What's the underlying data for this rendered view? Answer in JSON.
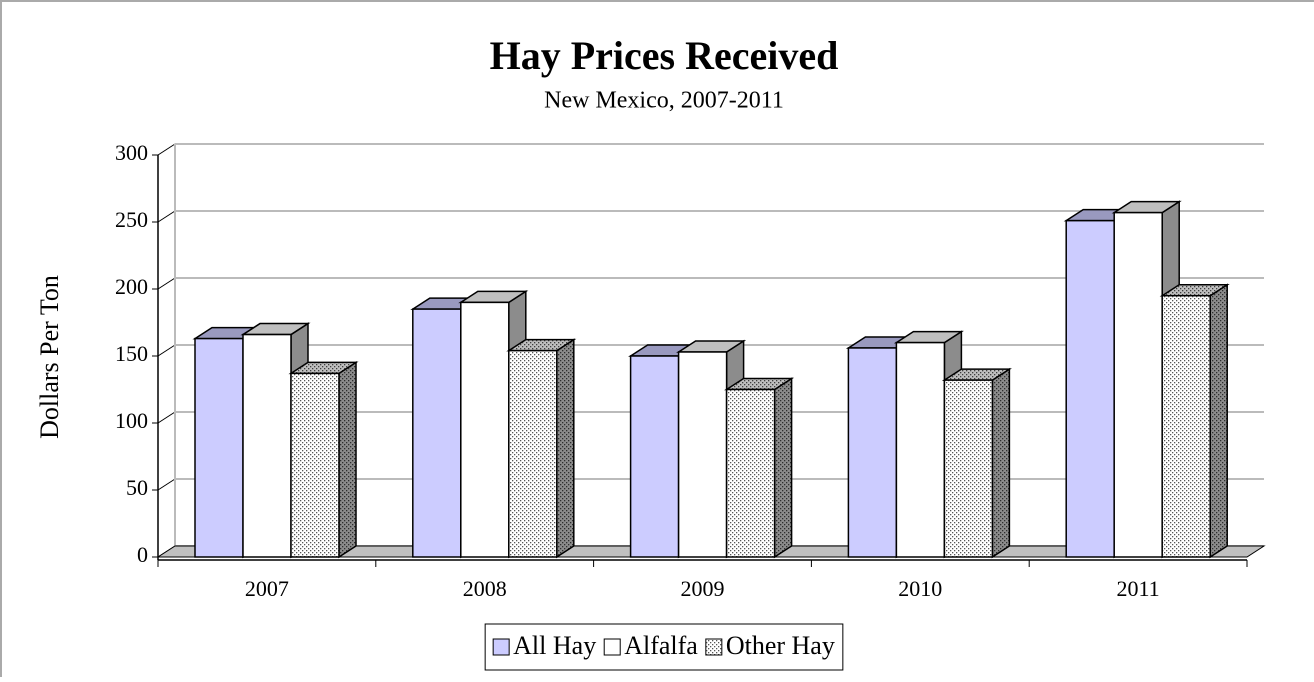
{
  "chart_data": {
    "type": "bar3d",
    "title": "Hay Prices Received",
    "subtitle": "New Mexico, 2007-2011",
    "y_label": "Dollars Per Ton",
    "categories": [
      "2007",
      "2008",
      "2009",
      "2010",
      "2011"
    ],
    "series": [
      {
        "name": "All Hay",
        "color": "#ccccff",
        "values": [
          163,
          185,
          150,
          156,
          251
        ]
      },
      {
        "name": "Alfalfa",
        "color": "#ffffff",
        "values": [
          166,
          190,
          153,
          160,
          257
        ]
      },
      {
        "name": "Other Hay",
        "color": "#ffffff",
        "pattern": "dotted",
        "values": [
          137,
          154,
          125,
          132,
          195
        ]
      }
    ],
    "ylim": [
      0,
      300
    ],
    "yticks": [
      0,
      50,
      100,
      150,
      200,
      250,
      300
    ],
    "grid": true,
    "legend": "bottom"
  }
}
